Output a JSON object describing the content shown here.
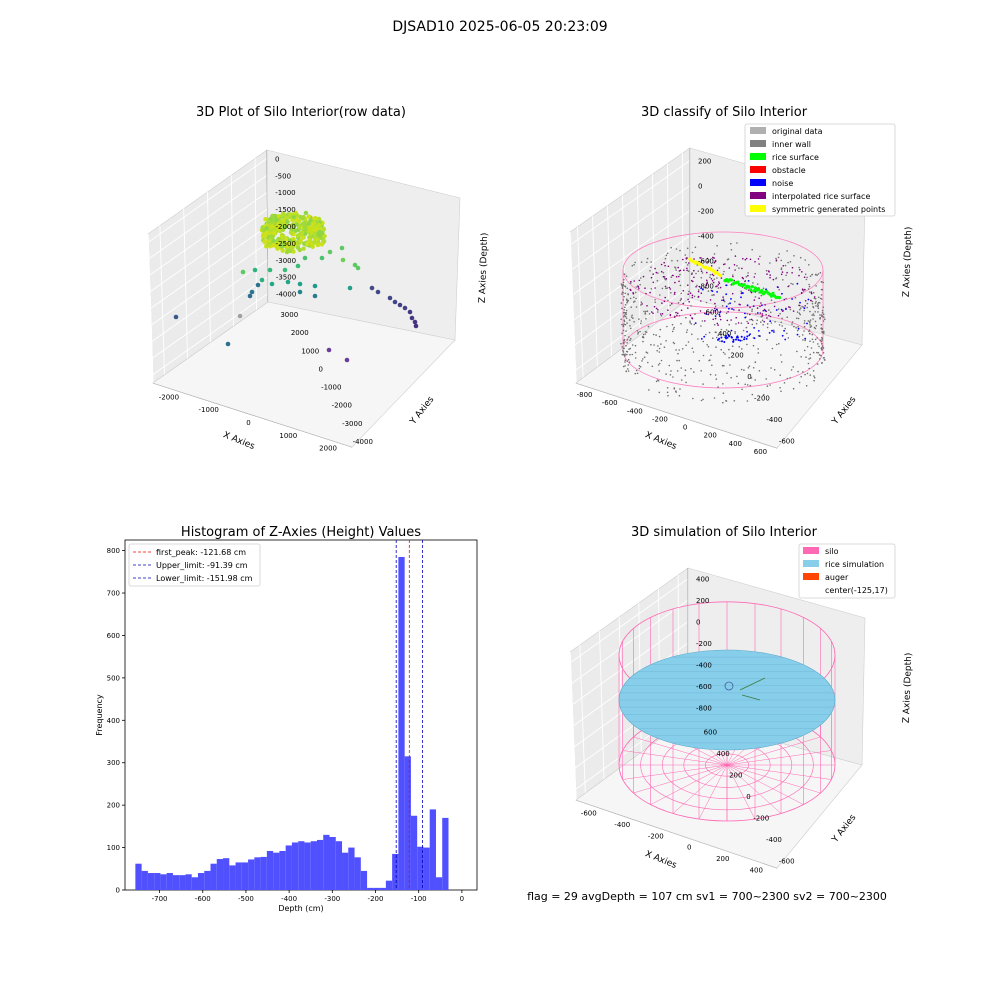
{
  "suptitle": "DJSAD10 2025-06-05 20:23:09",
  "status_text": "flag = 29  avgDepth = 107 cm  sv1 = 700~2300  sv2 = 700~2300",
  "chart_data": [
    {
      "type": "scatter",
      "title": "3D Plot of Silo Interior(row data)",
      "xlabel": "X Axies",
      "ylabel": "Y Axies",
      "zlabel": "Z Axies (Depth)",
      "x_ticks": [
        "-2000",
        "-1000",
        "0",
        "1000",
        "2000"
      ],
      "y_ticks": [
        "-4000",
        "-3000",
        "-2000",
        "-1000",
        "0",
        "1000",
        "2000",
        "3000"
      ],
      "z_ticks": [
        "0",
        "-500",
        "-1000",
        "-1500",
        "-2000",
        "-2500",
        "-3000",
        "-3500",
        "-4000"
      ],
      "xlim": [
        -2000,
        2500
      ],
      "ylim": [
        -4000,
        3500
      ],
      "zlim": [
        -4200,
        0
      ],
      "grid": true,
      "colormap": "viridis"
    },
    {
      "type": "scatter",
      "title": "3D classify of Silo Interior",
      "xlabel": "X Axies",
      "ylabel": "Y Axies",
      "zlabel": "Z Axies (Depth)",
      "x_ticks": [
        "-800",
        "-600",
        "-400",
        "-200",
        "0",
        "200",
        "400",
        "600"
      ],
      "y_ticks": [
        "-600",
        "-400",
        "-200",
        "0",
        "200",
        "400",
        "600"
      ],
      "z_ticks": [
        "200",
        "0",
        "-200",
        "-400",
        "-600",
        "-800"
      ],
      "xlim": [
        -800,
        600
      ],
      "ylim": [
        -600,
        600
      ],
      "zlim": [
        -900,
        250
      ],
      "legend_placement": "top-right",
      "legend": [
        {
          "label": "original data",
          "color": "#b0b0b0"
        },
        {
          "label": "inner wall",
          "color": "#808080"
        },
        {
          "label": "rice surface",
          "color": "#00ff00"
        },
        {
          "label": "obstacle",
          "color": "#ff0000"
        },
        {
          "label": "noise",
          "color": "#0000ff"
        },
        {
          "label": "interpolated rice surface",
          "color": "#800080"
        },
        {
          "label": "symmetric generated points",
          "color": "#ffff00"
        }
      ],
      "grid": true
    },
    {
      "type": "bar",
      "title": "Histogram of Z-Axies (Height) Values",
      "xlabel": "Depth (cm)",
      "ylabel": "Frequency",
      "x_ticks": [
        "-700",
        "-600",
        "-500",
        "-400",
        "-300",
        "-200",
        "-100",
        "0"
      ],
      "y_ticks": [
        "0",
        "100",
        "200",
        "300",
        "400",
        "500",
        "600",
        "700",
        "800"
      ],
      "xlim": [
        -780,
        35
      ],
      "ylim": [
        0,
        825
      ],
      "bin_width": 14.5,
      "bin_start": -756,
      "values": [
        62,
        45,
        40,
        40,
        37,
        40,
        35,
        35,
        37,
        30,
        40,
        45,
        62,
        73,
        75,
        58,
        65,
        65,
        72,
        77,
        78,
        92,
        88,
        92,
        105,
        112,
        115,
        112,
        115,
        118,
        130,
        125,
        115,
        88,
        100,
        77,
        45,
        5,
        5,
        5,
        22,
        85,
        785,
        315,
        175,
        102,
        100,
        190,
        30,
        170
      ],
      "bar_color": "#5050ff",
      "grid": false,
      "legend_placement": "top-left",
      "vlines": [
        {
          "label": "first_peak: -121.68 cm",
          "x": -121.68,
          "color": "#ff0000"
        },
        {
          "label": "Upper_limit: -91.39 cm",
          "x": -91.39,
          "color": "#0000bb"
        },
        {
          "label": "Lower_limit: -151.98 cm",
          "x": -151.98,
          "color": "#0000bb"
        }
      ]
    },
    {
      "type": "area",
      "title": "3D simulation of Silo Interior",
      "xlabel": "X Axies",
      "ylabel": "Y Axies",
      "zlabel": "Z Axies (Depth)",
      "x_ticks": [
        "-600",
        "-400",
        "-200",
        "0",
        "200",
        "400"
      ],
      "y_ticks": [
        "-600",
        "-400",
        "-200",
        "0",
        "200",
        "400",
        "600"
      ],
      "z_ticks": [
        "400",
        "200",
        "0",
        "-200",
        "-400",
        "-600",
        "-800"
      ],
      "xlim": [
        -700,
        450
      ],
      "ylim": [
        -650,
        650
      ],
      "zlim": [
        -900,
        450
      ],
      "legend_placement": "top-right",
      "legend": [
        {
          "label": "silo",
          "color": "#ff69b4"
        },
        {
          "label": "rice simulation",
          "color": "#87ceeb"
        },
        {
          "label": "auger",
          "color": "#ff4500"
        },
        {
          "label": "center(-125,17)",
          "color": ""
        }
      ],
      "grid": true
    }
  ]
}
